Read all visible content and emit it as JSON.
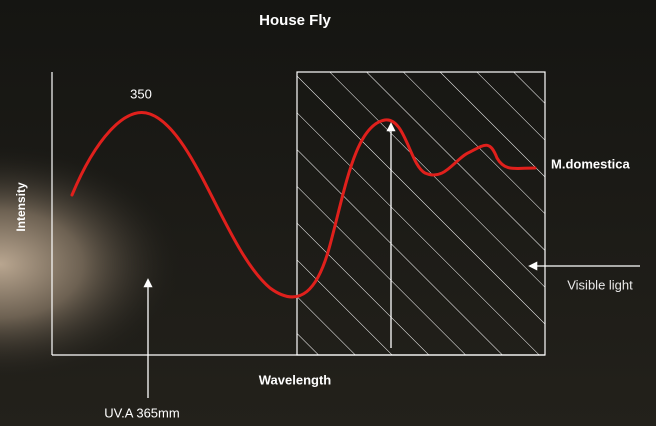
{
  "header": {
    "title": "House Fly"
  },
  "diagram": {
    "peak_label": "350",
    "y_axis_label": "Intensity",
    "x_axis_label": "Wavelength",
    "curve_label": "M.domestica",
    "visible_light_label": "Visible light",
    "uv_label": "UV.A 365mm"
  }
}
